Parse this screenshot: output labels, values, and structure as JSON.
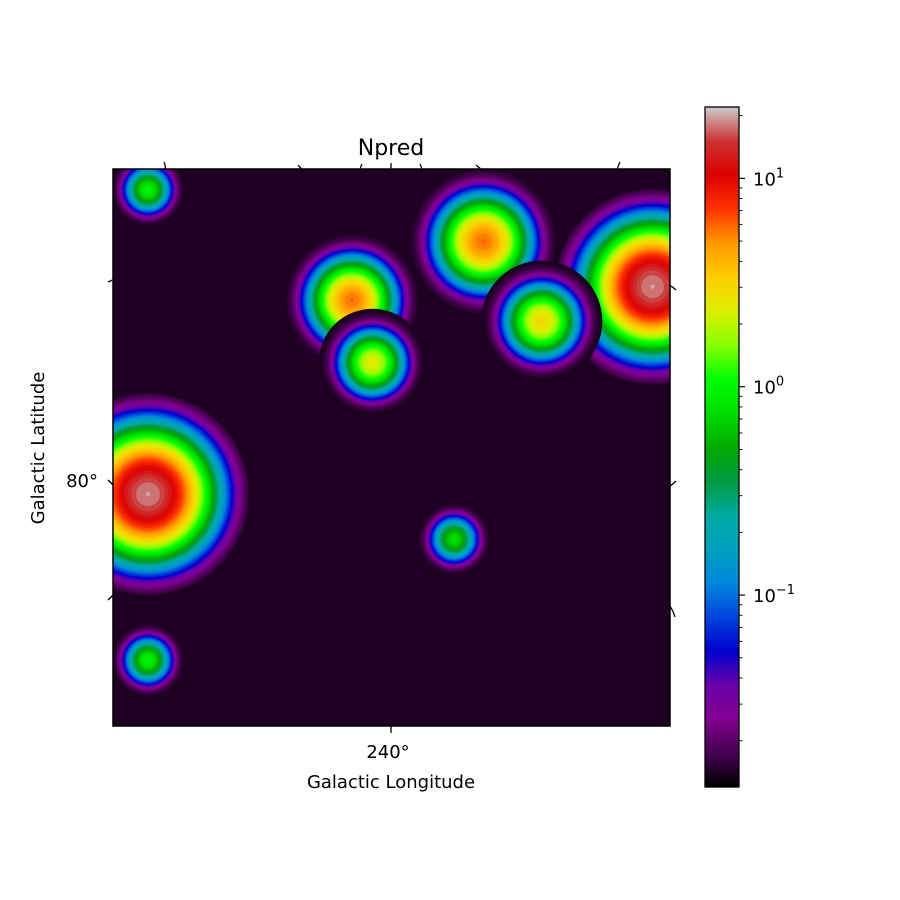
{
  "chart_data": {
    "type": "heatmap",
    "title": "Npred",
    "xlabel": "Galactic Longitude",
    "ylabel": "Galactic Latitude",
    "x_ticks": [
      "240°"
    ],
    "y_ticks": [
      "80°"
    ],
    "colorbar": {
      "scale": "log",
      "range": [
        0.012,
        22
      ],
      "ticks": [
        {
          "value": 10,
          "label": "10",
          "exp": "1"
        },
        {
          "value": 1,
          "label": "10",
          "exp": "0"
        },
        {
          "value": 0.1,
          "label": "10",
          "exp": "−1"
        }
      ],
      "colormap": "nipy_spectral"
    },
    "background_level": 0.014,
    "sources": [
      {
        "lon": 241.5,
        "lat": 85.6,
        "peak": 6,
        "extent": 1.0
      },
      {
        "lon": 242.2,
        "lat": 83.8,
        "peak": 2.5,
        "extent": 0.8
      },
      {
        "lon": 246.0,
        "lat": 87.3,
        "peak": 6,
        "extent": 1.1
      },
      {
        "lon": 251.8,
        "lat": 86.0,
        "peak": 20,
        "extent": 1.45
      },
      {
        "lon": 248.0,
        "lat": 85.0,
        "peak": 3,
        "extent": 0.9
      },
      {
        "lon": 245.0,
        "lat": 78.7,
        "peak": 0.8,
        "extent": 0.6
      },
      {
        "lon": 234.5,
        "lat": 88.8,
        "peak": 1.0,
        "extent": 0.6
      },
      {
        "lon": 234.5,
        "lat": 80.0,
        "peak": 20,
        "extent": 1.5
      },
      {
        "lon": 234.5,
        "lat": 75.2,
        "peak": 1.0,
        "extent": 0.6
      }
    ]
  }
}
